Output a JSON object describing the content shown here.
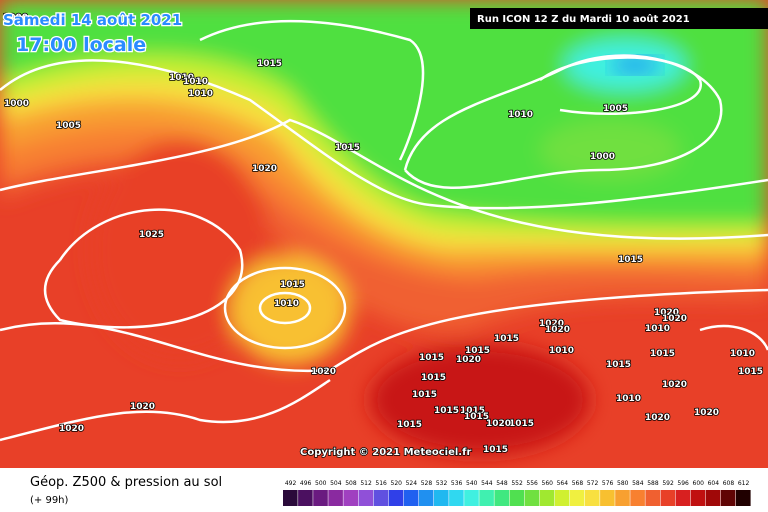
{
  "header": {
    "date": "Samedi 14 août 2021",
    "time": "17:00 locale",
    "run": "Run ICON 12 Z du Mardi 10 août 2021"
  },
  "copyright": "Copyright © 2021 Meteociel.fr",
  "legend": {
    "title": "Géop. Z500 & pression au sol",
    "lead": "(+ 99h)",
    "ticks": [
      492,
      496,
      500,
      504,
      508,
      512,
      516,
      520,
      524,
      528,
      532,
      536,
      540,
      544,
      548,
      552,
      556,
      560,
      564,
      568,
      572,
      576,
      580,
      584,
      588,
      592,
      596,
      600,
      604,
      608,
      612
    ],
    "colors": [
      "#2a0a3a",
      "#4b1060",
      "#6a1a80",
      "#8a2aa0",
      "#a040c0",
      "#9050d8",
      "#6050e0",
      "#3040e8",
      "#2060f0",
      "#2090f0",
      "#20b8f0",
      "#30d8f0",
      "#40f0e0",
      "#40f0b0",
      "#40e880",
      "#50e050",
      "#70e040",
      "#a0e830",
      "#d0f030",
      "#f0f040",
      "#f8e040",
      "#f8c030",
      "#f8a030",
      "#f88030",
      "#f06030",
      "#e84028",
      "#d82020",
      "#c01010",
      "#a00808",
      "#600404",
      "#200000"
    ]
  },
  "isobar_labels": [
    "1000",
    "1000",
    "1010",
    "1010",
    "1010",
    "1005",
    "1015",
    "1015",
    "1020",
    "1025",
    "1015",
    "1010",
    "1020",
    "1020",
    "1020",
    "1010",
    "1005",
    "1000",
    "1015",
    "1020",
    "1020",
    "1010",
    "1015",
    "1020",
    "1020",
    "1015",
    "1015",
    "1020",
    "1010",
    "1015",
    "1010",
    "1015",
    "1015",
    "1015",
    "1015",
    "1020",
    "1010",
    "1015",
    "1015",
    "1020",
    "1015",
    "1015",
    "1015",
    "1020",
    "1020",
    "1015"
  ]
}
